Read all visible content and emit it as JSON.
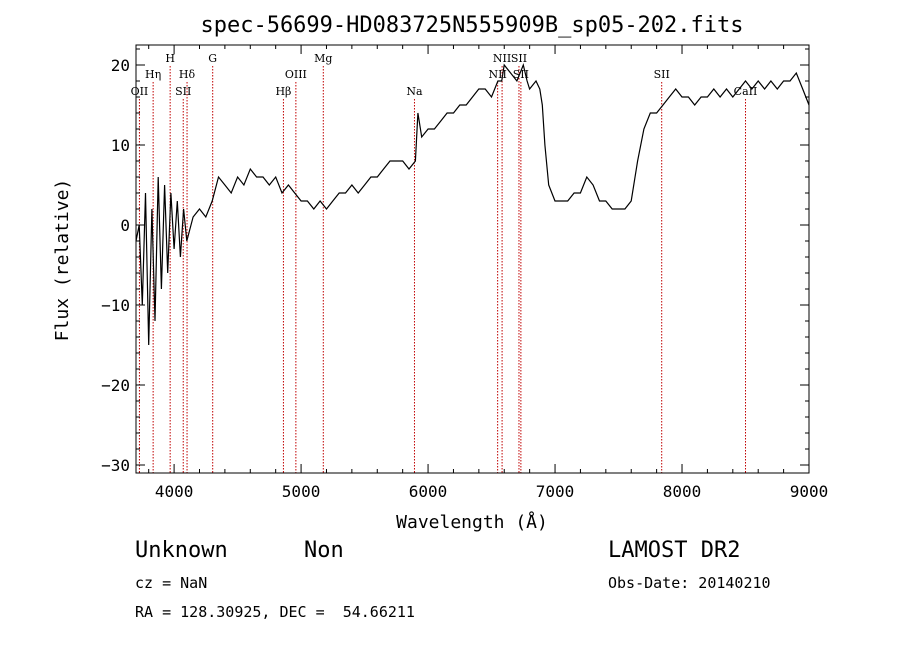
{
  "chart_data": {
    "type": "line",
    "title": "spec-56699-HD083725N555909B_sp05-202.fits",
    "xlabel": "Wavelength (Å)",
    "ylabel": "Flux (relative)",
    "xlim": [
      3700,
      9000
    ],
    "ylim": [
      -31,
      22.5
    ],
    "xticks": [
      4000,
      5000,
      6000,
      7000,
      8000,
      9000
    ],
    "xtick_labels": [
      "4000",
      "5000",
      "6000",
      "7000",
      "8000",
      "9000"
    ],
    "yticks": [
      -30,
      -20,
      -10,
      0,
      10,
      20
    ],
    "ytick_labels": [
      "−30",
      "−20",
      "−10",
      "0",
      "10",
      "20"
    ],
    "line_color": "#000000",
    "marker_color": "#c00000",
    "grid": false,
    "spectrum": {
      "x": [
        3700,
        3725,
        3750,
        3775,
        3800,
        3825,
        3850,
        3875,
        3900,
        3925,
        3950,
        3975,
        4000,
        4025,
        4050,
        4075,
        4100,
        4150,
        4200,
        4250,
        4300,
        4350,
        4400,
        4450,
        4500,
        4550,
        4600,
        4650,
        4700,
        4750,
        4800,
        4850,
        4900,
        4950,
        5000,
        5050,
        5100,
        5150,
        5200,
        5250,
        5300,
        5350,
        5400,
        5450,
        5500,
        5550,
        5600,
        5650,
        5700,
        5750,
        5800,
        5850,
        5900,
        5920,
        5950,
        6000,
        6050,
        6100,
        6150,
        6200,
        6250,
        6300,
        6350,
        6400,
        6450,
        6500,
        6550,
        6580,
        6600,
        6650,
        6700,
        6750,
        6780,
        6800,
        6850,
        6880,
        6900,
        6920,
        6950,
        7000,
        7050,
        7100,
        7150,
        7200,
        7250,
        7300,
        7350,
        7400,
        7450,
        7500,
        7550,
        7600,
        7650,
        7700,
        7750,
        7800,
        7850,
        7900,
        7950,
        8000,
        8050,
        8100,
        8150,
        8200,
        8250,
        8300,
        8350,
        8400,
        8450,
        8500,
        8550,
        8600,
        8650,
        8700,
        8750,
        8800,
        8850,
        8900,
        8950,
        9000
      ],
      "y": [
        -2,
        0,
        -10,
        4,
        -15,
        2,
        -12,
        6,
        -8,
        5,
        -6,
        4,
        -3,
        3,
        -4,
        2,
        -2,
        1,
        2,
        1,
        3,
        6,
        5,
        4,
        6,
        5,
        7,
        6,
        6,
        5,
        6,
        4,
        5,
        4,
        3,
        3,
        2,
        3,
        2,
        3,
        4,
        4,
        5,
        4,
        5,
        6,
        6,
        7,
        8,
        8,
        8,
        7,
        8,
        14,
        11,
        12,
        12,
        13,
        14,
        14,
        15,
        15,
        16,
        17,
        17,
        16,
        18,
        18,
        20,
        19,
        18,
        20,
        18,
        17,
        18,
        17,
        15,
        10,
        5,
        3,
        3,
        3,
        4,
        4,
        6,
        5,
        3,
        3,
        2,
        2,
        2,
        3,
        8,
        12,
        14,
        14,
        15,
        16,
        17,
        16,
        16,
        15,
        16,
        16,
        17,
        16,
        17,
        16,
        17,
        18,
        17,
        18,
        17,
        18,
        17,
        18,
        18,
        19,
        17,
        15
      ]
    },
    "lines": [
      {
        "name": "OII",
        "x": 3727,
        "row": 3
      },
      {
        "name": "Hη",
        "x": 3835,
        "row": 2
      },
      {
        "name": "H",
        "x": 3969,
        "row": 1
      },
      {
        "name": "SII",
        "x": 4072,
        "row": 3
      },
      {
        "name": "Hδ",
        "x": 4102,
        "row": 2
      },
      {
        "name": "G",
        "x": 4304,
        "row": 1
      },
      {
        "name": "Hβ",
        "x": 4861,
        "row": 3
      },
      {
        "name": "OIII",
        "x": 4959,
        "row": 2
      },
      {
        "name": "Mg",
        "x": 5175,
        "row": 1
      },
      {
        "name": "Na",
        "x": 5893,
        "row": 3
      },
      {
        "name": "NII",
        "x": 6548,
        "row": 2
      },
      {
        "name": "NII",
        "x": 6583,
        "row": 1
      },
      {
        "name": "SII",
        "x": 6716,
        "row": 1
      },
      {
        "name": "SII",
        "x": 6731,
        "row": 2
      },
      {
        "name": "SII",
        "x": 7840,
        "row": 2
      },
      {
        "name": "CaII",
        "x": 8500,
        "row": 3
      }
    ]
  },
  "info": {
    "object_class": "Unknown",
    "subclass": "Non",
    "survey": "LAMOST DR2",
    "cz": "cz = NaN",
    "obs_date": "Obs-Date: 20140210",
    "coords": "RA = 128.30925, DEC =  54.66211"
  }
}
